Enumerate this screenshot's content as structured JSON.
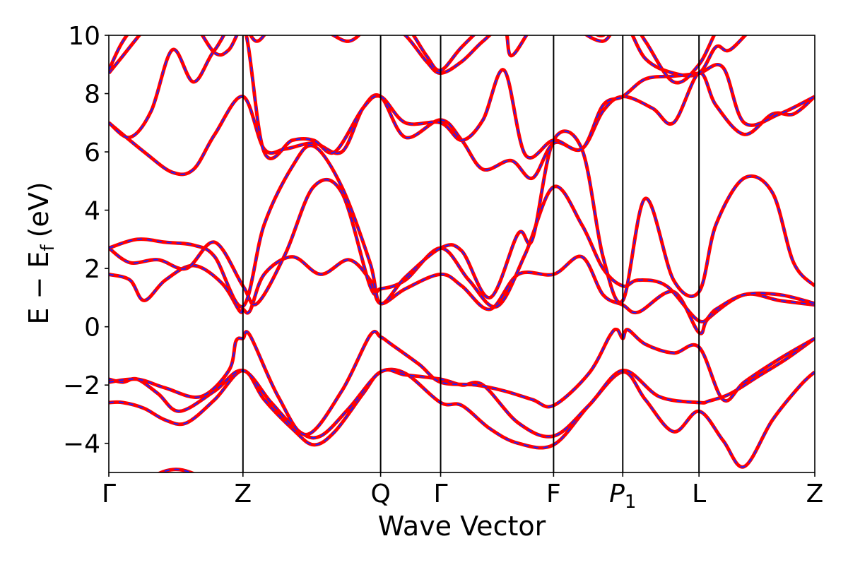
{
  "chart_data": {
    "type": "line",
    "title": "",
    "xlabel": "Wave Vector",
    "ylabel": "E − E",
    "ylabel_subscript": "f",
    "ylabel_unit": "(eV)",
    "ylim": [
      -5,
      10
    ],
    "xlim": [
      0,
      1
    ],
    "grid": false,
    "legend": "none",
    "yticks": [
      {
        "value": -4,
        "label": "−4"
      },
      {
        "value": -2,
        "label": "−2"
      },
      {
        "value": 0,
        "label": "0"
      },
      {
        "value": 2,
        "label": "2"
      },
      {
        "value": 4,
        "label": "4"
      },
      {
        "value": 6,
        "label": "6"
      },
      {
        "value": 8,
        "label": "8"
      },
      {
        "value": 10,
        "label": "10"
      }
    ],
    "high_symmetry_points": [
      {
        "x": 0.0,
        "label": "Γ"
      },
      {
        "x": 0.19,
        "label": "Z"
      },
      {
        "x": 0.385,
        "label": "Q"
      },
      {
        "x": 0.47,
        "label": "Γ"
      },
      {
        "x": 0.63,
        "label": "F"
      },
      {
        "x": 0.728,
        "label": "P",
        "subscript": "1"
      },
      {
        "x": 0.836,
        "label": "L"
      },
      {
        "x": 1.0,
        "label": "Z"
      }
    ],
    "series_style": {
      "primary_color": "#ff0000",
      "overlay_color": "#1f1fff",
      "overlay_dash": "dashed"
    },
    "bands": [
      {
        "x": [
          0,
          0.04,
          0.1,
          0.19,
          0.23,
          0.29,
          0.31,
          0.35,
          0.385,
          0.42,
          0.47,
          0.52,
          0.58,
          0.63,
          0.68,
          0.728,
          0.78,
          0.836,
          0.9,
          0.96,
          1.0
        ],
        "y": [
          -5.6,
          -5.4,
          -4.9,
          -5.8,
          -5.6,
          -6.2,
          -5.9,
          -5.5,
          -5.9,
          -6.0,
          -6.1,
          -5.6,
          -5.3,
          -5.8,
          -5.4,
          -5.6,
          -5.5,
          -5.7,
          -5.4,
          -5.1,
          -5.6
        ]
      },
      {
        "x": [
          0,
          0.02,
          0.05,
          0.08,
          0.11,
          0.15,
          0.19,
          0.22,
          0.26,
          0.29,
          0.32,
          0.36,
          0.385,
          0.42,
          0.47,
          0.5,
          0.54,
          0.58,
          0.63,
          0.68,
          0.728,
          0.76,
          0.8,
          0.836,
          0.87,
          0.9,
          0.94,
          0.98,
          1.0
        ],
        "y": [
          -2.6,
          -2.6,
          -2.8,
          -3.2,
          -3.3,
          -2.5,
          -1.5,
          -2.5,
          -3.5,
          -4.05,
          -3.6,
          -2.3,
          -1.55,
          -1.6,
          -2.6,
          -2.7,
          -3.5,
          -4.0,
          -4.05,
          -2.7,
          -1.55,
          -2.5,
          -3.6,
          -2.9,
          -3.9,
          -4.8,
          -3.2,
          -2.0,
          -1.55
        ]
      },
      {
        "x": [
          0,
          0.02,
          0.04,
          0.07,
          0.1,
          0.15,
          0.19,
          0.23,
          0.27,
          0.3,
          0.34,
          0.385,
          0.42,
          0.47,
          0.5,
          0.53,
          0.58,
          0.63,
          0.68,
          0.728,
          0.78,
          0.836,
          0.85,
          0.88,
          0.92,
          0.96,
          1.0
        ],
        "y": [
          -1.8,
          -1.9,
          -1.8,
          -2.3,
          -2.9,
          -2.2,
          -1.5,
          -2.6,
          -3.6,
          -3.75,
          -2.8,
          -1.55,
          -1.65,
          -1.8,
          -2.0,
          -2.0,
          -3.3,
          -3.75,
          -2.7,
          -1.5,
          -2.4,
          -2.6,
          -2.55,
          -2.3,
          -1.7,
          -1.1,
          -0.4
        ]
      },
      {
        "x": [
          0,
          0.04,
          0.08,
          0.13,
          0.17,
          0.18,
          0.19,
          0.2,
          0.24,
          0.28,
          0.33,
          0.37,
          0.385,
          0.4,
          0.44,
          0.47,
          0.52,
          0.56,
          0.6,
          0.63,
          0.68,
          0.71,
          0.72,
          0.728,
          0.735,
          0.76,
          0.8,
          0.836,
          0.87,
          0.9,
          0.95,
          1.0
        ],
        "y": [
          -1.9,
          -1.8,
          -2.1,
          -2.4,
          -1.5,
          -0.5,
          -0.4,
          -0.3,
          -2.4,
          -3.7,
          -2.2,
          -0.3,
          -0.35,
          -0.6,
          -1.3,
          -1.9,
          -2.0,
          -2.2,
          -2.5,
          -2.7,
          -1.6,
          -0.3,
          -0.1,
          -0.4,
          -0.1,
          -0.6,
          -0.9,
          -0.7,
          -2.5,
          -1.9,
          -1.1,
          -0.4
        ]
      },
      {
        "x": [
          0,
          0.03,
          0.05,
          0.08,
          0.12,
          0.16,
          0.185,
          0.19,
          0.2,
          0.22,
          0.26,
          0.3,
          0.34,
          0.37,
          0.385,
          0.42,
          0.47,
          0.5,
          0.54,
          0.58,
          0.63,
          0.67,
          0.7,
          0.728,
          0.75,
          0.8,
          0.836,
          0.85,
          0.9,
          0.95,
          1.0
        ],
        "y": [
          1.8,
          1.6,
          0.9,
          1.6,
          2.1,
          1.5,
          0.55,
          0.6,
          0.55,
          1.8,
          2.4,
          1.8,
          2.3,
          1.6,
          0.8,
          1.3,
          1.8,
          1.4,
          0.6,
          1.8,
          1.8,
          2.4,
          1.1,
          0.75,
          0.5,
          1.2,
          -0.2,
          0.3,
          1.1,
          0.9,
          0.75
        ]
      },
      {
        "x": [
          0,
          0.03,
          0.07,
          0.11,
          0.15,
          0.19,
          0.21,
          0.25,
          0.29,
          0.33,
          0.37,
          0.385,
          0.42,
          0.47,
          0.51,
          0.55,
          0.59,
          0.63,
          0.67,
          0.7,
          0.728,
          0.75,
          0.79,
          0.836,
          0.86,
          0.9,
          0.95,
          1.0
        ],
        "y": [
          2.7,
          2.2,
          2.3,
          2.0,
          2.9,
          1.4,
          0.8,
          2.5,
          4.8,
          4.6,
          1.4,
          1.3,
          1.6,
          2.7,
          1.6,
          0.7,
          2.5,
          4.8,
          3.5,
          2.0,
          1.4,
          1.6,
          1.4,
          0.2,
          0.6,
          1.1,
          1.1,
          0.8
        ]
      },
      {
        "x": [
          0,
          0.04,
          0.08,
          0.12,
          0.15,
          0.19,
          0.22,
          0.26,
          0.29,
          0.33,
          0.37,
          0.385,
          0.42,
          0.47,
          0.5,
          0.54,
          0.58,
          0.6,
          0.63,
          0.67,
          0.7,
          0.728,
          0.76,
          0.8,
          0.836,
          0.86,
          0.9,
          0.94,
          0.97,
          1.0
        ],
        "y": [
          2.7,
          3.0,
          2.9,
          2.8,
          2.4,
          0.7,
          3.5,
          5.5,
          6.2,
          4.8,
          2.2,
          0.8,
          1.7,
          2.7,
          2.6,
          1.0,
          3.2,
          3.0,
          6.4,
          6.1,
          2.4,
          0.9,
          4.4,
          1.6,
          1.2,
          3.5,
          5.1,
          4.6,
          2.2,
          1.4
        ]
      },
      {
        "x": [
          0,
          0.05,
          0.09,
          0.12,
          0.15,
          0.19,
          0.22,
          0.25,
          0.29,
          0.33,
          0.36,
          0.385,
          0.42,
          0.47,
          0.5,
          0.53,
          0.57,
          0.6,
          0.63,
          0.67,
          0.7,
          0.728,
          0.77,
          0.8,
          0.836,
          0.86,
          0.9,
          0.94,
          0.97,
          1.0
        ],
        "y": [
          7.0,
          6.0,
          5.3,
          5.4,
          6.6,
          7.9,
          6.1,
          6.1,
          6.3,
          6.0,
          7.5,
          7.9,
          6.5,
          7.1,
          6.4,
          5.4,
          5.7,
          5.1,
          6.3,
          6.1,
          7.4,
          7.9,
          7.5,
          7.0,
          8.7,
          7.6,
          6.6,
          7.3,
          7.3,
          7.9
        ]
      },
      {
        "x": [
          0,
          0.03,
          0.06,
          0.09,
          0.12,
          0.15,
          0.19,
          0.22,
          0.26,
          0.29,
          0.32,
          0.36,
          0.385,
          0.42,
          0.47,
          0.5,
          0.53,
          0.56,
          0.59,
          0.63,
          0.67,
          0.7,
          0.728,
          0.76,
          0.8,
          0.836,
          0.87,
          0.9,
          0.95,
          1.0
        ],
        "y": [
          7.0,
          6.5,
          7.4,
          9.5,
          8.4,
          9.5,
          10.4,
          6.0,
          6.4,
          6.4,
          6.0,
          7.5,
          7.9,
          7.0,
          7.0,
          6.4,
          7.1,
          8.8,
          5.9,
          6.4,
          6.1,
          7.6,
          7.9,
          8.5,
          8.6,
          8.7,
          8.9,
          7.0,
          7.3,
          7.9
        ]
      },
      {
        "x": [
          0,
          0.02,
          0.05,
          0.08,
          0.12,
          0.15,
          0.17,
          0.19,
          0.21,
          0.24,
          0.3,
          0.34,
          0.37,
          0.385,
          0.42,
          0.45,
          0.47,
          0.5,
          0.53,
          0.56,
          0.57,
          0.6,
          0.63,
          0.66,
          0.7,
          0.728,
          0.76,
          0.8,
          0.836,
          0.86,
          0.88,
          0.92,
          0.96,
          1.0
        ],
        "y": [
          8.7,
          9.3,
          10.2,
          11.0,
          10.4,
          9.4,
          9.5,
          10.3,
          9.8,
          10.4,
          10.2,
          9.8,
          10.4,
          10.6,
          10.0,
          9.1,
          8.7,
          9.1,
          9.8,
          10.3,
          9.3,
          10.3,
          11.0,
          10.3,
          9.8,
          10.5,
          9.2,
          8.7,
          8.7,
          9.6,
          9.5,
          10.4,
          10.6,
          10.2
        ]
      },
      {
        "x": [
          0,
          0.02,
          0.05,
          0.08,
          0.11,
          0.15,
          0.19,
          0.23,
          0.27,
          0.31,
          0.35,
          0.385,
          0.42,
          0.45,
          0.47,
          0.5,
          0.54,
          0.58,
          0.63,
          0.67,
          0.7,
          0.728,
          0.76,
          0.8,
          0.836,
          0.87,
          0.91,
          0.95,
          1.0
        ],
        "y": [
          8.8,
          9.8,
          10.7,
          11.2,
          10.8,
          10.5,
          11.0,
          10.6,
          10.9,
          11.0,
          10.7,
          11.1,
          10.4,
          9.3,
          8.8,
          9.6,
          10.5,
          11.0,
          10.8,
          10.4,
          10.0,
          10.9,
          9.8,
          8.4,
          9.0,
          10.5,
          10.9,
          11.0,
          10.7
        ]
      }
    ]
  }
}
